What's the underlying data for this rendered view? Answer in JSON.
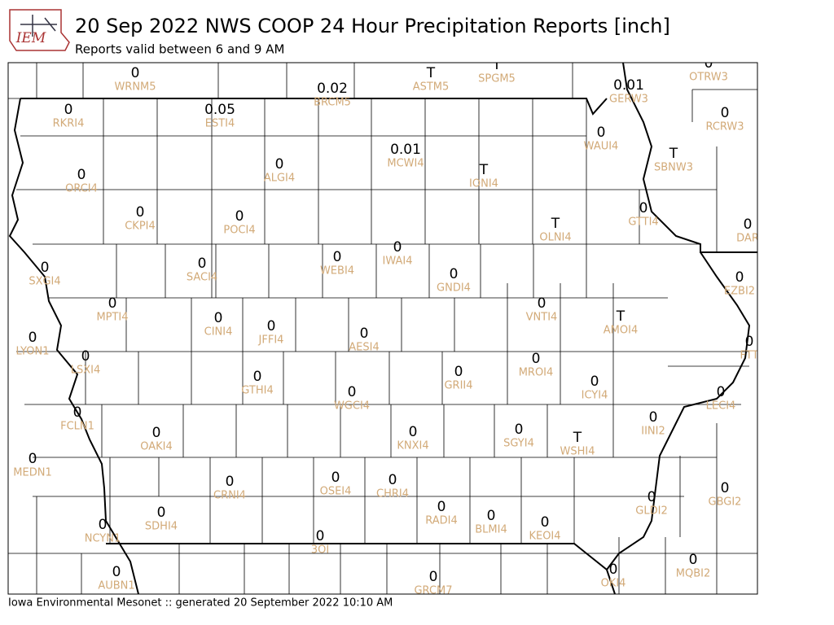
{
  "header": {
    "logo": "IEM",
    "title": "20 Sep 2022 NWS COOP 24 Hour Precipitation Reports [inch]",
    "subtitle": "Reports valid between 6 and 9 AM"
  },
  "footer": "Iowa Environmental Mesonet :: generated 20 September 2022 10:10 AM",
  "stations": [
    {
      "value": "0",
      "label": "WRNM5"
    },
    {
      "value": "T",
      "label": "ASTM5"
    },
    {
      "value": "T",
      "label": "SPGM5"
    },
    {
      "value": "0.02",
      "label": "BRCM5"
    },
    {
      "value": "0.01",
      "label": "GERW3"
    },
    {
      "value": "0",
      "label": "OTRW3"
    },
    {
      "value": "0",
      "label": "RKRI4"
    },
    {
      "value": "0.05",
      "label": "ESTI4"
    },
    {
      "value": "0",
      "label": "RCRW3"
    },
    {
      "value": "0",
      "label": "WAUI4"
    },
    {
      "value": "T",
      "label": "SBNW3"
    },
    {
      "value": "0.01",
      "label": "MCWI4"
    },
    {
      "value": "T",
      "label": "IONI4"
    },
    {
      "value": "0",
      "label": "ALGI4"
    },
    {
      "value": "0",
      "label": "ORCI4"
    },
    {
      "value": "0",
      "label": "CKPI4"
    },
    {
      "value": "0",
      "label": "POCI4"
    },
    {
      "value": "0",
      "label": "GTTI4"
    },
    {
      "value": "T",
      "label": "OLNI4"
    },
    {
      "value": "0",
      "label": "DAR"
    },
    {
      "value": "0",
      "label": "SXGI4"
    },
    {
      "value": "0",
      "label": "SACI4"
    },
    {
      "value": "0",
      "label": "WEBI4"
    },
    {
      "value": "0",
      "label": "IWAI4"
    },
    {
      "value": "0",
      "label": "GNDI4"
    },
    {
      "value": "0",
      "label": "EZBI2"
    },
    {
      "value": "0",
      "label": "MPTI4"
    },
    {
      "value": "0",
      "label": "VNTI4"
    },
    {
      "value": "T",
      "label": "AMOI4"
    },
    {
      "value": "0",
      "label": "CINI4"
    },
    {
      "value": "0",
      "label": "JFFI4"
    },
    {
      "value": "0",
      "label": "AESI4"
    },
    {
      "value": "0",
      "label": "LYON1"
    },
    {
      "value": "0",
      "label": "FTT"
    },
    {
      "value": "0",
      "label": "LSXI4"
    },
    {
      "value": "0",
      "label": "GRII4"
    },
    {
      "value": "0",
      "label": "MROI4"
    },
    {
      "value": "0",
      "label": "ICYI4"
    },
    {
      "value": "0",
      "label": "GTHI4"
    },
    {
      "value": "0",
      "label": "WGCI4"
    },
    {
      "value": "0",
      "label": "LECI4"
    },
    {
      "value": "0",
      "label": "FCLN1"
    },
    {
      "value": "0",
      "label": "IINI2"
    },
    {
      "value": "0",
      "label": "OAKI4"
    },
    {
      "value": "0",
      "label": "KNXI4"
    },
    {
      "value": "0",
      "label": "SGYI4"
    },
    {
      "value": "T",
      "label": "WSHI4"
    },
    {
      "value": "0",
      "label": "MEDN1"
    },
    {
      "value": "0",
      "label": "CRNI4"
    },
    {
      "value": "0",
      "label": "OSEI4"
    },
    {
      "value": "0",
      "label": "CHRI4"
    },
    {
      "value": "0",
      "label": "GBGI2"
    },
    {
      "value": "0",
      "label": "GLDI2"
    },
    {
      "value": "0",
      "label": "RADI4"
    },
    {
      "value": "0",
      "label": "BLMI4"
    },
    {
      "value": "0",
      "label": "KEOI4"
    },
    {
      "value": "0",
      "label": "SDHI4"
    },
    {
      "value": "0",
      "label": "NCYN1"
    },
    {
      "value": "0",
      "label": "3OI"
    },
    {
      "value": "0",
      "label": "MQBI2"
    },
    {
      "value": "0",
      "label": "OKI4"
    },
    {
      "value": "0",
      "label": "AUBN1"
    },
    {
      "value": "0",
      "label": "GRCM7"
    }
  ]
}
